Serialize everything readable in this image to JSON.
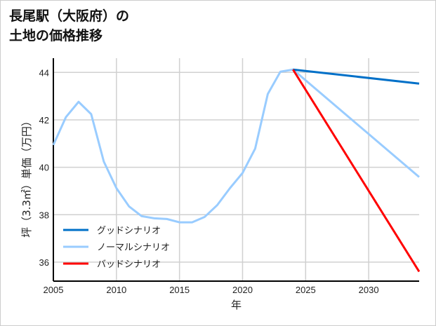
{
  "chart_data": {
    "type": "line",
    "title_lines": [
      "長尾駅（大阪府）の",
      "土地の価格推移"
    ],
    "xlabel": "年",
    "ylabel": "坪（3.3㎡）単価（万円）",
    "xlim": [
      2005,
      2034
    ],
    "ylim": [
      35.2,
      44.6
    ],
    "xticks": [
      2005,
      2010,
      2015,
      2020,
      2025,
      2030
    ],
    "yticks": [
      36,
      38,
      40,
      42,
      44
    ],
    "grid": true,
    "legend_position": "lower-left",
    "series": [
      {
        "name": "グッドシナリオ",
        "color": "#0070c8",
        "x": [
          2024,
          2034
        ],
        "y": [
          44.12,
          43.53
        ]
      },
      {
        "name": "ノーマルシナリオ",
        "color": "#99ccff",
        "x": [
          2005,
          2006,
          2007,
          2008,
          2009,
          2010,
          2011,
          2012,
          2013,
          2014,
          2015,
          2016,
          2017,
          2018,
          2019,
          2020,
          2021,
          2022,
          2023,
          2024,
          2034
        ],
        "y": [
          40.94,
          42.12,
          42.76,
          42.24,
          40.24,
          39.12,
          38.35,
          37.94,
          37.85,
          37.82,
          37.68,
          37.68,
          37.91,
          38.41,
          39.12,
          39.76,
          40.79,
          43.09,
          44.03,
          44.12,
          39.59
        ]
      },
      {
        "name": "バッドシナリオ",
        "color": "#ff0000",
        "x": [
          2024,
          2034
        ],
        "y": [
          44.12,
          35.6
        ]
      }
    ]
  }
}
